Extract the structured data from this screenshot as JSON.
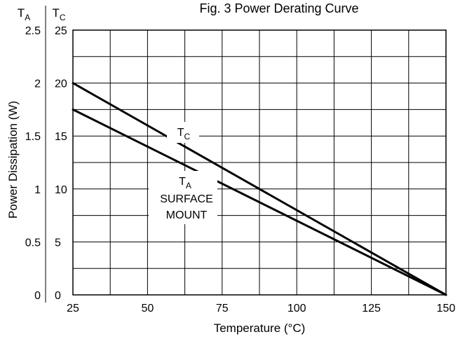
{
  "chart_data": {
    "type": "line",
    "title": "Fig. 3 Power Derating Curve",
    "xlabel": "Temperature (°C)",
    "ylabel": "Power Dissipation (W)",
    "xlim": [
      25,
      150
    ],
    "ylim_tc": [
      0,
      25
    ],
    "ylim_ta": [
      0,
      2.5
    ],
    "x_ticks": [
      25,
      50,
      75,
      100,
      125,
      150
    ],
    "y_ticks_tc": [
      0,
      5,
      10,
      15,
      20,
      25
    ],
    "y_ticks_ta": [
      "0",
      "0.5",
      "1",
      "1.5",
      "2",
      "2.5"
    ],
    "axis_header_ta": {
      "main": "T",
      "sub": "A"
    },
    "axis_header_tc": {
      "main": "T",
      "sub": "C"
    },
    "grid": true,
    "series": [
      {
        "label_main": "T",
        "label_sub": "C",
        "x": [
          25,
          150
        ],
        "y": [
          20,
          0
        ]
      },
      {
        "label_main": "T",
        "label_sub": "A",
        "label_lines": [
          "SURFACE",
          "MOUNT"
        ],
        "x": [
          25,
          150
        ],
        "y": [
          17.5,
          0
        ]
      }
    ]
  }
}
